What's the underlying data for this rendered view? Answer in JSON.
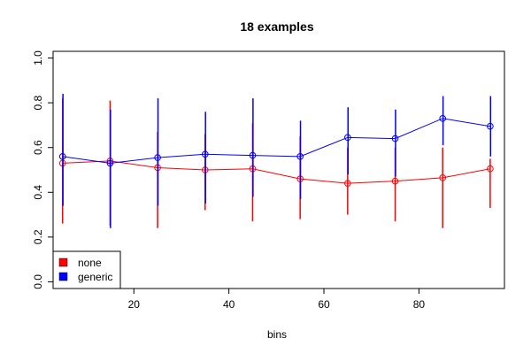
{
  "chart_data": {
    "type": "line",
    "title": "18 examples",
    "xlabel": "bins",
    "ylabel": "",
    "xlim": [
      3,
      98
    ],
    "ylim": [
      -0.03,
      1.03
    ],
    "xticks": [
      20,
      40,
      60,
      80
    ],
    "yticks": [
      0.0,
      0.2,
      0.4,
      0.6,
      0.8,
      1.0
    ],
    "ytick_labels": [
      "0.0",
      "0.2",
      "0.4",
      "0.6",
      "0.8",
      "1.0"
    ],
    "x": [
      5,
      15,
      25,
      35,
      45,
      55,
      65,
      75,
      85,
      95
    ],
    "grid": false,
    "legend_position": "bottom-left",
    "series": [
      {
        "name": "none",
        "color": "#ff0000",
        "values": [
          0.53,
          0.54,
          0.51,
          0.5,
          0.505,
          0.46,
          0.44,
          0.45,
          0.465,
          0.505
        ],
        "err_low": [
          0.26,
          0.25,
          0.24,
          0.32,
          0.27,
          0.28,
          0.3,
          0.27,
          0.24,
          0.33
        ],
        "err_high": [
          0.82,
          0.81,
          0.67,
          0.66,
          0.71,
          0.65,
          0.6,
          0.6,
          0.6,
          0.55
        ]
      },
      {
        "name": "generic",
        "color": "#0000ff",
        "values": [
          0.56,
          0.53,
          0.555,
          0.57,
          0.565,
          0.56,
          0.645,
          0.64,
          0.73,
          0.695
        ],
        "err_low": [
          0.34,
          0.24,
          0.34,
          0.35,
          0.38,
          0.37,
          0.48,
          0.47,
          0.61,
          0.56
        ],
        "err_high": [
          0.84,
          0.77,
          0.82,
          0.76,
          0.82,
          0.72,
          0.78,
          0.77,
          0.83,
          0.83
        ]
      }
    ]
  }
}
